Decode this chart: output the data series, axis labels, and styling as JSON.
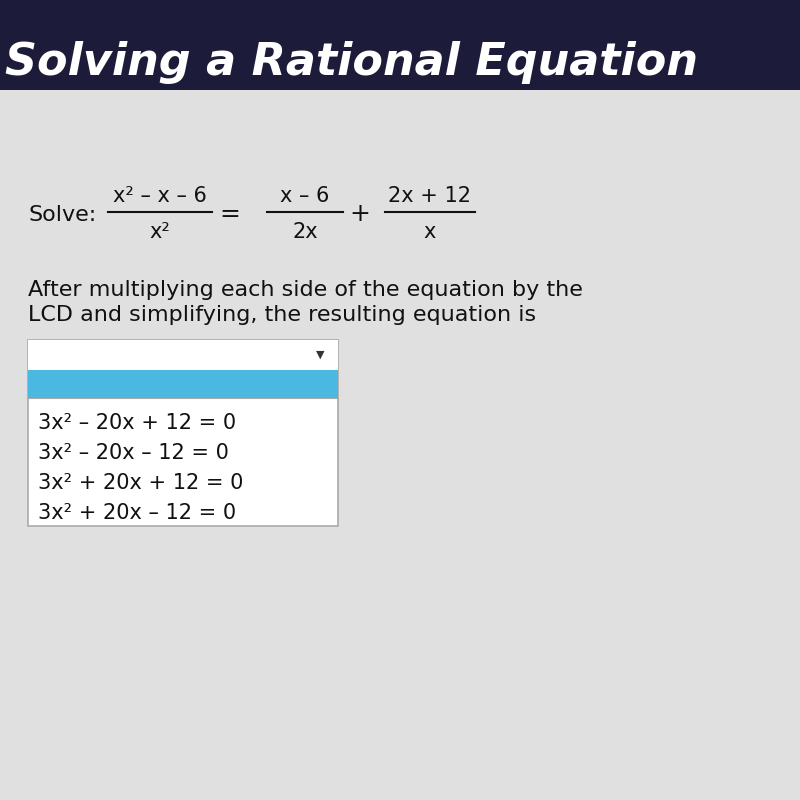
{
  "title_bg": "#1a1a2e",
  "title_color": "#ffffff",
  "title_text": "Solving a Rational Equation",
  "title_fontsize": 32,
  "bg_color": "#c8c8c8",
  "content_bg": "#e8e8e8",
  "solve_label": "Solve:",
  "equation_numerator1": "x² – x – 6",
  "equation_denominator1": "x²",
  "equation_numerator2": "x – 6",
  "equation_denominator2": "2x",
  "equation_numerator3": "2x + 12",
  "equation_denominator3": "x",
  "description_line1": "After multiplying each side of the equation by the",
  "description_line2": "LCD and simplifying, the resulting equation is",
  "dropdown_bg": "#ffffff",
  "dropdown_selected_bg": "#4ab8e0",
  "dropdown_border": "#aaaaaa",
  "dropdown_arrow": "▼",
  "options": [
    "3x² – 20x + 12 = 0",
    "3x² – 20x – 12 = 0",
    "3x² + 20x + 12 = 0",
    "3x² + 20x – 12 = 0"
  ],
  "option_fontsize": 15,
  "desc_fontsize": 16,
  "solve_fontsize": 16,
  "eq_fontsize": 15
}
